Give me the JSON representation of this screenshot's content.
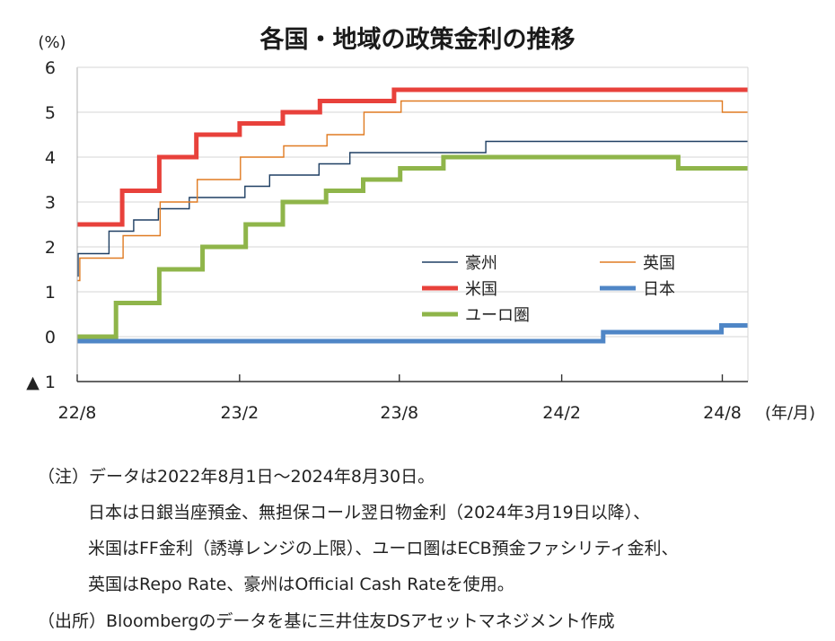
{
  "chart_data": {
    "type": "line",
    "title": "各国・地域の政策金利の推移",
    "ylabel": "(%)",
    "xlabel": "(年/月)",
    "ylim": [
      -1,
      6
    ],
    "xlim": [
      "2022-08-01",
      "2024-08-30"
    ],
    "grid": "horizontal",
    "legend_position": "center-right",
    "y_ticks": [
      {
        "value": 6,
        "label": "6"
      },
      {
        "value": 5,
        "label": "5"
      },
      {
        "value": 4,
        "label": "4"
      },
      {
        "value": 3,
        "label": "3"
      },
      {
        "value": 2,
        "label": "2"
      },
      {
        "value": 1,
        "label": "1"
      },
      {
        "value": 0,
        "label": "0"
      },
      {
        "value": -1,
        "label": "▲ 1"
      }
    ],
    "x_ticks": [
      {
        "date": "2022-08-01",
        "label": "22/8"
      },
      {
        "date": "2023-02-01",
        "label": "23/2"
      },
      {
        "date": "2023-08-01",
        "label": "23/8"
      },
      {
        "date": "2024-02-01",
        "label": "24/2"
      },
      {
        "date": "2024-08-01",
        "label": "24/8"
      }
    ],
    "series": [
      {
        "name": "豪州",
        "color": "#1f3f63",
        "width": 1.4,
        "points": [
          [
            "2022-08-01",
            1.35
          ],
          [
            "2022-08-02",
            1.85
          ],
          [
            "2022-09-06",
            2.35
          ],
          [
            "2022-10-04",
            2.6
          ],
          [
            "2022-11-01",
            2.85
          ],
          [
            "2022-12-06",
            3.1
          ],
          [
            "2023-02-07",
            3.35
          ],
          [
            "2023-03-07",
            3.6
          ],
          [
            "2023-05-02",
            3.85
          ],
          [
            "2023-06-06",
            4.1
          ],
          [
            "2023-11-07",
            4.35
          ],
          [
            "2024-08-30",
            4.35
          ]
        ]
      },
      {
        "name": "英国",
        "color": "#e07b22",
        "width": 1.4,
        "points": [
          [
            "2022-08-01",
            1.25
          ],
          [
            "2022-08-04",
            1.75
          ],
          [
            "2022-09-22",
            2.25
          ],
          [
            "2022-11-03",
            3.0
          ],
          [
            "2022-12-15",
            3.5
          ],
          [
            "2023-02-02",
            4.0
          ],
          [
            "2023-03-23",
            4.25
          ],
          [
            "2023-05-11",
            4.5
          ],
          [
            "2023-06-22",
            5.0
          ],
          [
            "2023-08-03",
            5.25
          ],
          [
            "2024-08-01",
            5.0
          ],
          [
            "2024-08-30",
            5.0
          ]
        ]
      },
      {
        "name": "米国",
        "color": "#e8413b",
        "width": 5,
        "points": [
          [
            "2022-08-01",
            2.5
          ],
          [
            "2022-09-21",
            3.25
          ],
          [
            "2022-11-02",
            4.0
          ],
          [
            "2022-12-14",
            4.5
          ],
          [
            "2023-02-01",
            4.75
          ],
          [
            "2023-03-22",
            5.0
          ],
          [
            "2023-05-03",
            5.25
          ],
          [
            "2023-07-26",
            5.5
          ],
          [
            "2024-08-30",
            5.5
          ]
        ]
      },
      {
        "name": "日本",
        "color": "#4f86c6",
        "width": 5,
        "points": [
          [
            "2022-08-01",
            -0.1
          ],
          [
            "2024-03-19",
            0.1
          ],
          [
            "2024-07-31",
            0.25
          ],
          [
            "2024-08-30",
            0.25
          ]
        ]
      },
      {
        "name": "ユーロ圏",
        "color": "#8fb54a",
        "width": 5,
        "points": [
          [
            "2022-08-01",
            0.0
          ],
          [
            "2022-09-14",
            0.75
          ],
          [
            "2022-11-02",
            1.5
          ],
          [
            "2022-12-21",
            2.0
          ],
          [
            "2023-02-08",
            2.5
          ],
          [
            "2023-03-22",
            3.0
          ],
          [
            "2023-05-10",
            3.25
          ],
          [
            "2023-06-21",
            3.5
          ],
          [
            "2023-08-02",
            3.75
          ],
          [
            "2023-09-20",
            4.0
          ],
          [
            "2024-06-12",
            3.75
          ],
          [
            "2024-08-30",
            3.75
          ]
        ]
      }
    ]
  },
  "notes": [
    "（注）データは2022年8月1日～2024年8月30日。",
    "日本は日銀当座預金、無担保コール翌日物金利（2024年3月19日以降）、",
    "米国はFF金利（誘導レンジの上限）、ユーロ圏はECB預金ファシリティ金利、",
    "英国はRepo Rate、豪州はOfficial Cash Rateを使用。",
    "（出所）Bloombergのデータを基に三井住友DSアセットマネジメント作成"
  ]
}
